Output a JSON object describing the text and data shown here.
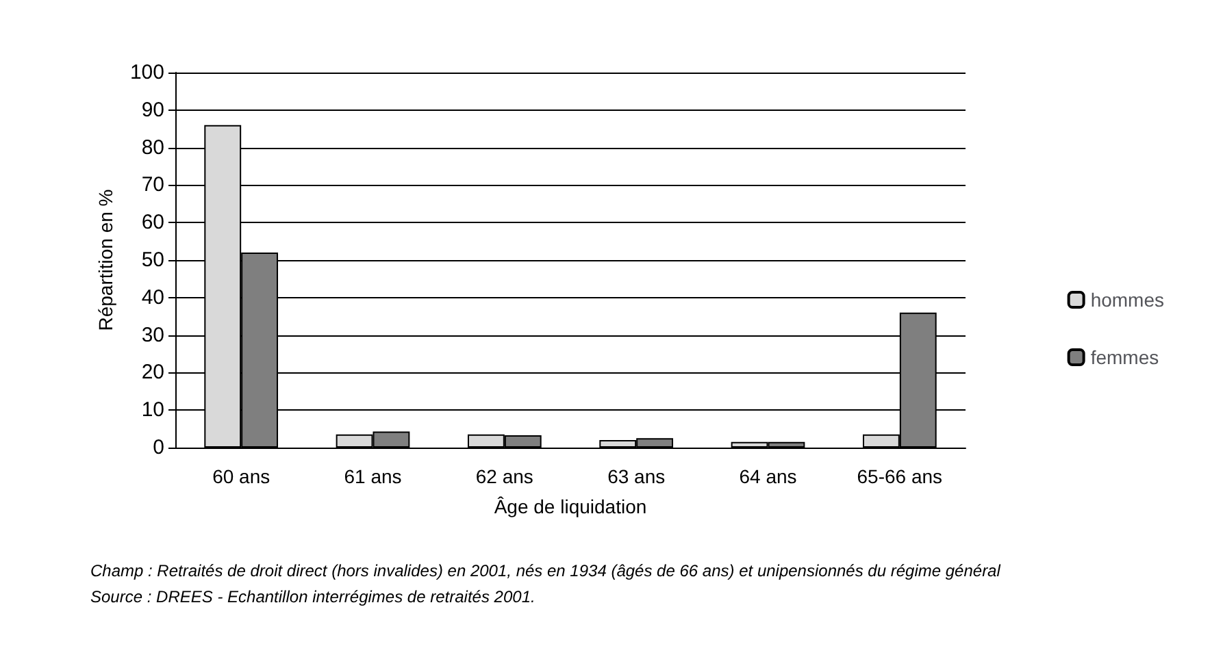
{
  "chart_data": {
    "type": "bar",
    "xlabel": "Âge de liquidation",
    "ylabel": "Répartition en %",
    "categories": [
      "60 ans",
      "61 ans",
      "62 ans",
      "63 ans",
      "64 ans",
      "65-66 ans"
    ],
    "series": [
      {
        "name": "hommes",
        "color": "#d9d9d9",
        "values": [
          86,
          3.5,
          3.5,
          2,
          1.5,
          3.5
        ]
      },
      {
        "name": "femmes",
        "color": "#7f7f7f",
        "values": [
          52,
          4.3,
          3.3,
          2.5,
          1.5,
          36
        ]
      }
    ],
    "ylim": [
      0,
      100
    ],
    "yticks": [
      0,
      10,
      20,
      30,
      40,
      50,
      60,
      70,
      80,
      90,
      100
    ],
    "grid": "y",
    "legend": "right",
    "annotations": [
      "Champ : Retraités de droit direct (hors invalides) en 2001, nés en 1934 (âgés de 66 ans) et unipensionnés du régime général",
      "Source : DREES - Echantillon interrégimes de retraités 2001."
    ]
  }
}
